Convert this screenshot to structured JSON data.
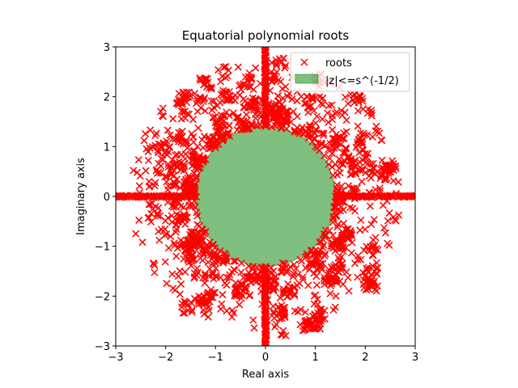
{
  "chart_data": {
    "type": "scatter",
    "title": "Equatorial polynomial roots",
    "xlabel": "Real axis",
    "ylabel": "Imaginary axis",
    "xlim": [
      -3,
      3
    ],
    "ylim": [
      -3,
      3
    ],
    "xticks": [
      "−3",
      "−2",
      "−1",
      "0",
      "1",
      "2",
      "3"
    ],
    "yticks": [
      "−3",
      "−2",
      "−1",
      "0",
      "1",
      "2",
      "3"
    ],
    "grid": false,
    "legend": {
      "placement": "upper-right",
      "entries": [
        "roots",
        "|z|<=s^(-1/2)"
      ]
    },
    "series": [
      {
        "name": "roots",
        "marker": "x",
        "color": "#ff0000",
        "description": "Many roots in annular band 1.4 < |z| < 3 with dense clusters along real and imaginary axes"
      },
      {
        "name": "|z|<=s^(-1/2)",
        "shape": "circle",
        "center": [
          0,
          0
        ],
        "radius": 1.4,
        "color": "#008000",
        "alpha": 0.5
      }
    ]
  }
}
